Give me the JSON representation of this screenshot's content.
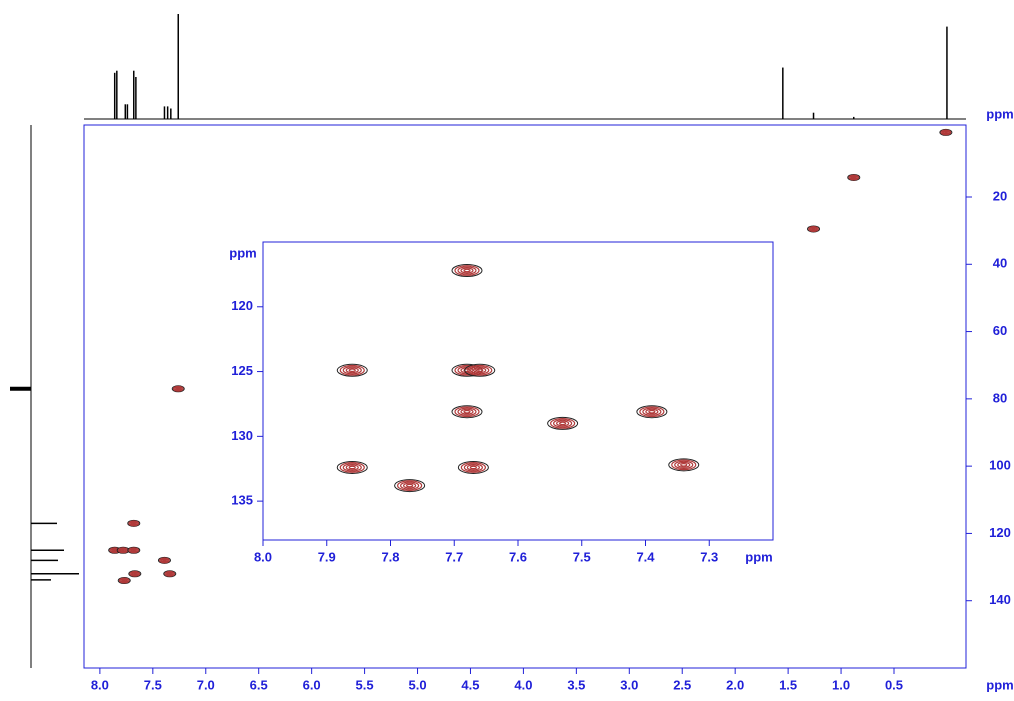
{
  "chart_data": [
    {
      "type": "contour",
      "x_label": "ppm",
      "y_label": "ppm",
      "xlim": [
        8.15,
        -0.18
      ],
      "ylim": [
        -1.4,
        160
      ],
      "xticks": [
        {
          "value": 8,
          "label": "8.0"
        },
        7.5,
        {
          "value": 7,
          "label": "7.0"
        },
        6.5,
        {
          "value": 6,
          "label": "6.0"
        },
        5.5,
        {
          "value": 5,
          "label": "5.0"
        },
        4.5,
        {
          "value": 4,
          "label": "4.0"
        },
        3.5,
        {
          "value": 3,
          "label": "3.0"
        },
        2.5,
        {
          "value": 2,
          "label": "2.0"
        },
        1.5,
        {
          "value": 1,
          "label": "1.0"
        },
        0.5
      ],
      "yticks": [
        20,
        40,
        60,
        80,
        100,
        120,
        140
      ],
      "x": [
        7.68,
        7.86,
        7.78,
        7.68,
        7.39,
        7.34,
        7.67,
        7.77,
        7.26,
        1.26,
        0.88,
        0.01
      ],
      "y": [
        117,
        125,
        125,
        125,
        128,
        132,
        132,
        134,
        77,
        29.5,
        14.2,
        0.8
      ],
      "color": "#b03a3a",
      "outline_color": "#222222",
      "axis_color": "#2020d8"
    },
    {
      "type": "contour",
      "x_label": "ppm",
      "y_label": "ppm",
      "xlim": [
        8.0,
        7.2
      ],
      "ylim": [
        115,
        138
      ],
      "xticks": [
        {
          "value": 8,
          "label": "8.0"
        },
        7.9,
        7.8,
        7.7,
        7.6,
        7.5,
        7.4,
        7.3
      ],
      "yticks": [
        120,
        125,
        130,
        135
      ],
      "x": [
        7.68,
        7.86,
        7.68,
        7.66,
        7.39,
        7.68,
        7.53,
        7.34,
        7.67,
        7.86,
        7.77
      ],
      "y": [
        117.2,
        124.9,
        124.9,
        124.9,
        128.1,
        128.1,
        129.0,
        132.2,
        132.4,
        132.4,
        133.8
      ],
      "color": "#b03a3a",
      "outline_color": "#222222",
      "axis_color": "#2020d8"
    },
    {
      "type": "spectrum",
      "orientation": "top",
      "ylim": [
        0,
        100
      ],
      "x": [
        7.86,
        7.84,
        7.76,
        7.74,
        7.68,
        7.66,
        7.39,
        7.36,
        7.33,
        7.26,
        1.55,
        1.26,
        0.88,
        0.0
      ],
      "values": [
        44,
        46,
        14,
        14,
        46,
        40,
        12,
        12,
        10,
        100,
        49,
        6,
        2,
        88
      ],
      "color": "#000000"
    },
    {
      "type": "spectrum",
      "orientation": "left",
      "xlim": [
        -25,
        50
      ],
      "y": [
        117,
        125,
        128,
        132,
        133.8,
        77
      ],
      "values": [
        26,
        33,
        27,
        48,
        20,
        -21
      ],
      "color": "#000000"
    }
  ]
}
